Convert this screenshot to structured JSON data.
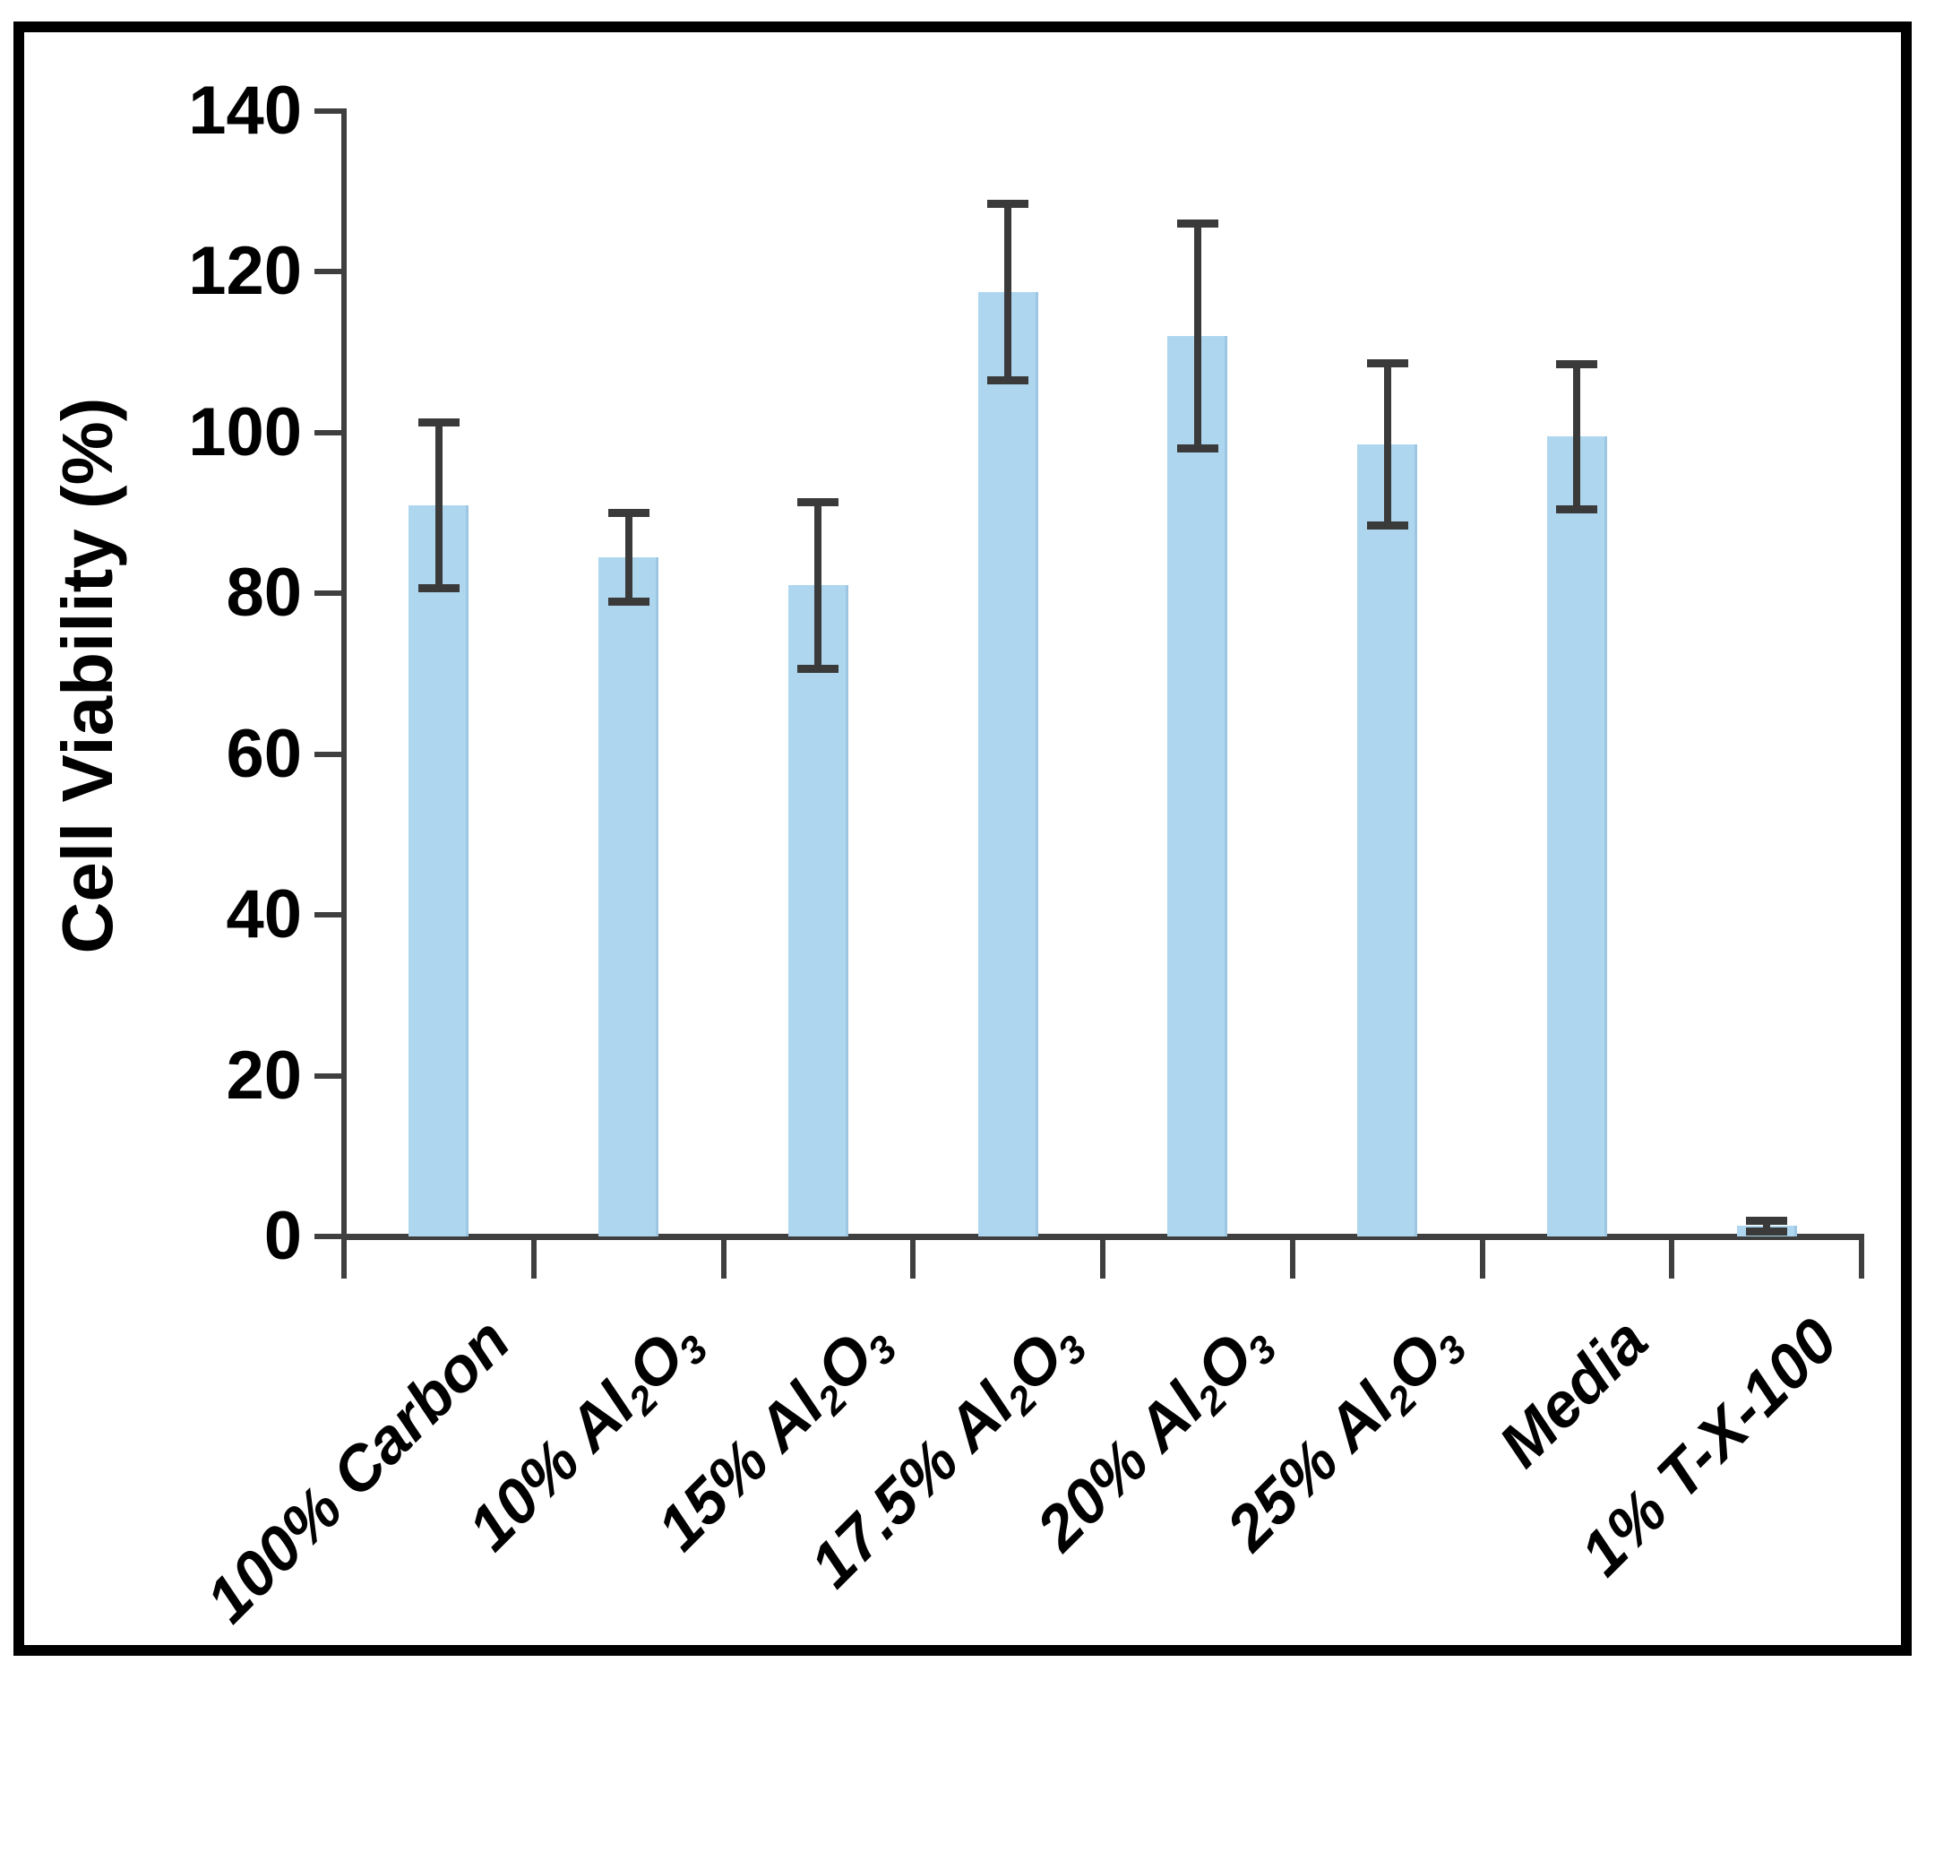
{
  "chart_data": {
    "type": "bar",
    "title": "",
    "ylabel": "Cell Viability (%)",
    "xlabel": "",
    "ylim": [
      0,
      140
    ],
    "yticks": [
      0,
      20,
      40,
      60,
      80,
      100,
      120,
      140
    ],
    "ytick_labels": [
      "0",
      "20",
      "40",
      "60",
      "80",
      "100",
      "120",
      "140"
    ],
    "grid": false,
    "legend_position": "none",
    "categories": [
      "100% Carbon",
      "10% Al_2O_3",
      "15% Al_2O_3",
      "17.5% Al_2O_3",
      "20% Al_2O_3",
      "25% Al_2O_3",
      "Media",
      "1% T-X-100"
    ],
    "series": [
      {
        "name": "Cell Viability (%)",
        "values": [
          91,
          84.5,
          81,
          117.5,
          112,
          98.5,
          99.5,
          1.3
        ],
        "error_plus": [
          10.3,
          5.5,
          10.4,
          11,
          14,
          10.1,
          9,
          0.7
        ],
        "error_minus": [
          10.3,
          5.5,
          10.4,
          11,
          14,
          10.1,
          9,
          0.7
        ]
      }
    ],
    "colors": {
      "bar_fill": "#AED7EF",
      "bar_edge": "#9CC6E2",
      "error_bar": "#3A3A3A",
      "axis": "#3F3F3F",
      "text": "#000000",
      "frame": "#000000",
      "background": "#FFFFFF"
    }
  }
}
